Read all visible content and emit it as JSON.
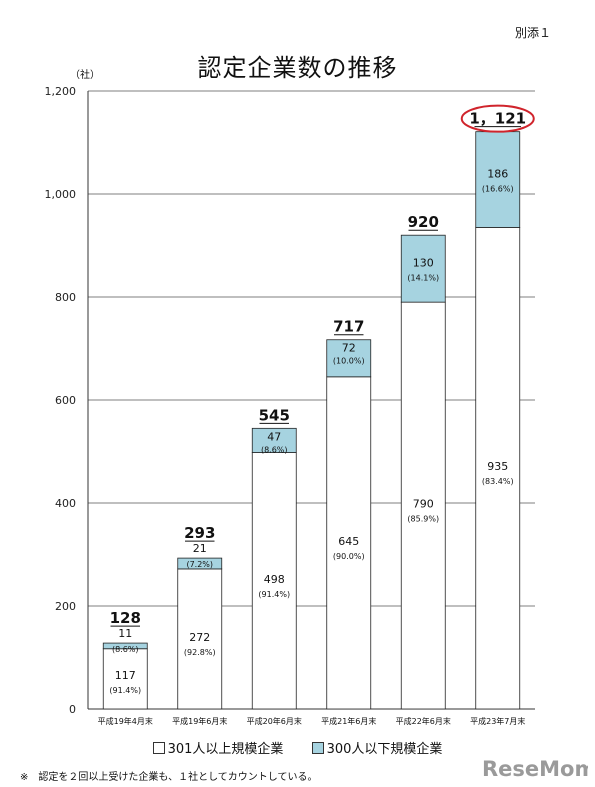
{
  "header": {
    "attachment_label": "別添１",
    "title": "認定企業数の推移",
    "unit_label": "（社）"
  },
  "chart_data": {
    "type": "bar",
    "stacked": true,
    "title": "認定企業数の推移",
    "ylabel": "（社）",
    "ylim": [
      0,
      1200
    ],
    "yticks": [
      "0",
      "200",
      "400",
      "600",
      "800",
      "1,000",
      "1,200"
    ],
    "ytick_values": [
      0,
      200,
      400,
      600,
      800,
      1000,
      1200
    ],
    "grid": true,
    "legend_position": "bottom",
    "categories": [
      "平成19年4月末",
      "平成19年6月末",
      "平成20年6月末",
      "平成21年6月末",
      "平成22年6月末",
      "平成23年7月末"
    ],
    "series": [
      {
        "name": "301人以上規模企業",
        "color": "#ffffff",
        "values": [
          117,
          272,
          498,
          645,
          790,
          935
        ],
        "labels": [
          "117",
          "272",
          "498",
          "645",
          "790",
          "935"
        ],
        "percents": [
          "(91.4%)",
          "(92.8%)",
          "(91.4%)",
          "(90.0%)",
          "(85.9%)",
          "(83.4%)"
        ]
      },
      {
        "name": "300人以下規模企業",
        "color": "#a6d3e0",
        "values": [
          11,
          21,
          47,
          72,
          130,
          186
        ],
        "labels": [
          "11",
          "21",
          "47",
          "72",
          "130",
          "186"
        ],
        "percents": [
          "(8.6%)",
          "(7.2%)",
          "(8.6%)",
          "(10.0%)",
          "(14.1%)",
          "(16.6%)"
        ]
      }
    ],
    "totals": [
      128,
      293,
      545,
      717,
      920,
      1121
    ],
    "total_labels": [
      "128",
      "293",
      "545",
      "717",
      "920",
      "1，121"
    ],
    "highlight_color": "#d0242c"
  },
  "legend": {
    "large_label": "301人以上規模企業",
    "small_label": "300人以下規模企業",
    "large_color": "#ffffff",
    "small_color": "#a6d3e0"
  },
  "footnote": "※　認定を２回以上受けた企業も、１社としてカウントしている。",
  "watermark": {
    "text": "ReseMom",
    "icon": "resemom-logo"
  }
}
